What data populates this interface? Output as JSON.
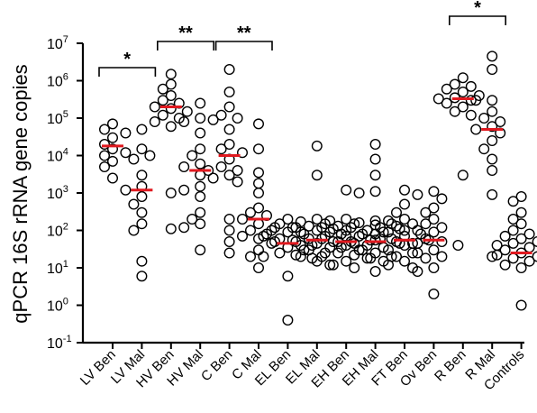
{
  "chart_data": {
    "type": "scatter",
    "ylabel": "qPCR 16S rRNA gene copies",
    "yscale": "log10",
    "ylim": [
      0.1,
      10000000
    ],
    "y_ticks": [
      {
        "value": 0.1,
        "base": "10",
        "exp": "-1"
      },
      {
        "value": 1,
        "base": "10",
        "exp": "0"
      },
      {
        "value": 10,
        "base": "10",
        "exp": "1"
      },
      {
        "value": 100,
        "base": "10",
        "exp": "2"
      },
      {
        "value": 1000,
        "base": "10",
        "exp": "3"
      },
      {
        "value": 10000,
        "base": "10",
        "exp": "4"
      },
      {
        "value": 100000,
        "base": "10",
        "exp": "5"
      },
      {
        "value": 1000000,
        "base": "10",
        "exp": "6"
      },
      {
        "value": 10000000,
        "base": "10",
        "exp": "7"
      }
    ],
    "categories": [
      "LV Ben",
      "LV Mal",
      "HV Ben",
      "HV Mal",
      "C Ben",
      "C Mal",
      "EL Ben",
      "EL Mal",
      "EH Ben",
      "EH Mal",
      "FT Ben",
      "Ov Ben",
      "R Ben",
      "R Mal",
      "Controls"
    ],
    "median_color": "#e0191f",
    "groups": [
      {
        "category": "LV Ben",
        "median": 18000,
        "points": [
          70000,
          50000,
          30000,
          20000,
          15000,
          10000,
          7000,
          5000,
          2500
        ]
      },
      {
        "category": "LV Mal",
        "median": 1200,
        "points": [
          50000,
          40000,
          15000,
          12000,
          10000,
          8000,
          3000,
          1500,
          1200,
          800,
          500,
          300,
          150,
          100,
          15,
          6
        ]
      },
      {
        "category": "HV Ben",
        "median": 200000,
        "points": [
          1500000,
          800000,
          600000,
          400000,
          300000,
          250000,
          200000,
          180000,
          150000,
          120000,
          100000,
          80000,
          60000,
          1000,
          110
        ]
      },
      {
        "category": "HV Mal",
        "median": 4000,
        "points": [
          250000,
          100000,
          80000,
          40000,
          15000,
          10000,
          6000,
          5000,
          4000,
          3000,
          1500,
          1200,
          800,
          300,
          200,
          150,
          120,
          30
        ]
      },
      {
        "category": "C Ben",
        "median": 10000,
        "points": [
          2000000,
          500000,
          200000,
          120000,
          100000,
          90000,
          50000,
          20000,
          15000,
          8000,
          5000,
          4000,
          3000,
          2500,
          2000,
          200,
          100,
          50,
          25
        ]
      },
      {
        "category": "C Mal",
        "median": 200,
        "points": [
          70000,
          15000,
          12000,
          3500,
          1800,
          1000,
          400,
          300,
          250,
          200,
          150,
          120,
          100,
          80,
          70,
          60,
          50,
          30,
          20,
          10
        ]
      },
      {
        "category": "EL Ben",
        "median": 45,
        "points": [
          200,
          150,
          120,
          100,
          90,
          80,
          70,
          60,
          50,
          45,
          40,
          35,
          30,
          25,
          22,
          20,
          18,
          6,
          0.4
        ]
      },
      {
        "category": "EL Mal",
        "median": 55,
        "points": [
          18000,
          3000,
          200,
          170,
          150,
          130,
          120,
          110,
          100,
          90,
          80,
          70,
          60,
          55,
          50,
          45,
          40,
          35,
          30,
          25,
          20,
          15,
          12
        ]
      },
      {
        "category": "EH Ben",
        "median": 50,
        "points": [
          1200,
          200,
          180,
          150,
          130,
          120,
          100,
          90,
          80,
          70,
          60,
          55,
          50,
          45,
          40,
          35,
          30,
          25,
          22,
          20,
          18,
          15,
          12,
          10
        ]
      },
      {
        "category": "EH Mal",
        "median": 50,
        "points": [
          20000,
          8000,
          3000,
          1100,
          1000,
          180,
          160,
          150,
          140,
          120,
          110,
          100,
          90,
          80,
          70,
          60,
          55,
          50,
          45,
          40,
          35,
          30,
          25,
          20,
          18,
          15,
          8
        ]
      },
      {
        "category": "FT Ben",
        "median": 55,
        "points": [
          1200,
          500,
          300,
          200,
          180,
          150,
          130,
          120,
          100,
          90,
          80,
          70,
          60,
          55,
          50,
          45,
          40,
          30,
          25,
          20,
          15,
          12,
          10
        ]
      },
      {
        "category": "Ov Ben",
        "median": 55,
        "points": [
          1100,
          900,
          700,
          400,
          300,
          200,
          150,
          120,
          100,
          90,
          60,
          50,
          45,
          40,
          30,
          25,
          20,
          18,
          10,
          8,
          2
        ]
      },
      {
        "category": "R Ben",
        "median": 330000,
        "points": [
          1200000,
          800000,
          700000,
          600000,
          500000,
          400000,
          350000,
          330000,
          300000,
          250000,
          200000,
          150000,
          120000,
          3000
        ]
      },
      {
        "category": "R Mal",
        "median": 50000,
        "points": [
          4500000,
          2000000,
          300000,
          300000,
          150000,
          100000,
          80000,
          60000,
          50000,
          40000,
          25000,
          15000,
          8000,
          4000,
          900,
          20
        ]
      },
      {
        "category": "Controls",
        "median": 25,
        "points": [
          800,
          600,
          300,
          200,
          150,
          100,
          80,
          70,
          60,
          50,
          45,
          40,
          35,
          30,
          28,
          25,
          22,
          20,
          18,
          15,
          12,
          10,
          1
        ]
      }
    ],
    "significance": [
      {
        "from": "LV Ben",
        "to": "LV Mal",
        "label": "*"
      },
      {
        "from": "HV Ben",
        "to": "HV Mal",
        "label": "**"
      },
      {
        "from": "C Ben",
        "to": "C Mal",
        "label": "**"
      },
      {
        "from": "R Ben",
        "to": "R Mal",
        "label": "*"
      }
    ]
  }
}
